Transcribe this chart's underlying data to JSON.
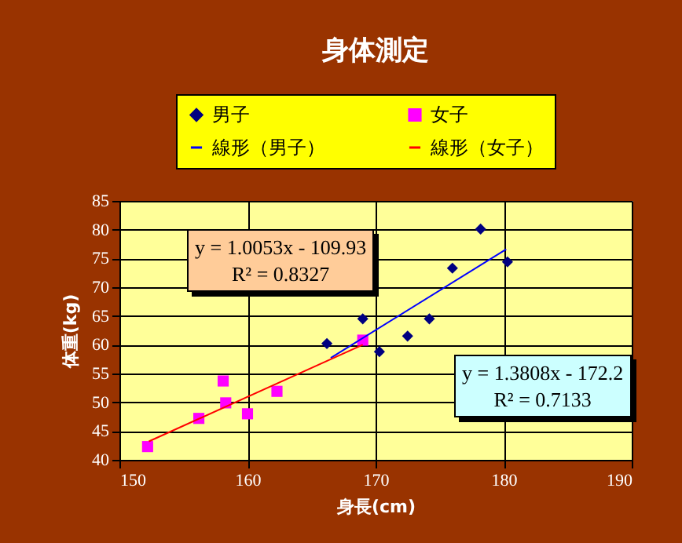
{
  "chart_data": {
    "type": "scatter",
    "title": "身体測定",
    "xlabel": "身長(cm)",
    "ylabel": "体重(kg)",
    "xlim": [
      150,
      190
    ],
    "xticks": [
      150,
      160,
      170,
      180,
      190
    ],
    "ylim": [
      40,
      85
    ],
    "yticks": [
      40,
      45,
      50,
      55,
      60,
      65,
      70,
      75,
      80,
      85
    ],
    "grid": true,
    "legend": "top",
    "annotations": [
      "y = 1.0053x - 109.93\nR² = 0.8327",
      "y = 1.3808x - 172.2\nR² = 0.7133"
    ],
    "series": [
      {
        "name": "男子",
        "type": "scatter",
        "marker": "diamond",
        "color": "#000080",
        "x": [
          166.2,
          169.0,
          170.3,
          172.5,
          174.2,
          176.0,
          178.2,
          180.3
        ],
        "values": [
          60.2,
          64.5,
          58.8,
          61.5,
          64.5,
          73.3,
          80.1,
          74.4
        ]
      },
      {
        "name": "女子",
        "type": "scatter",
        "marker": "square",
        "color": "#ff00ff",
        "x": [
          152.2,
          156.2,
          158.1,
          158.3,
          160.0,
          162.3,
          169.0
        ],
        "values": [
          42.3,
          47.2,
          53.7,
          49.9,
          48.0,
          51.9,
          60.8
        ]
      },
      {
        "name": "線形（男子）",
        "type": "line",
        "color": "#0000ff",
        "x": [
          166.5,
          180.2
        ],
        "values": [
          57.7,
          76.6
        ]
      },
      {
        "name": "線形（女子）",
        "type": "line",
        "color": "#ff0000",
        "x": [
          152.3,
          169.0
        ],
        "values": [
          43.2,
          60.0
        ]
      }
    ]
  }
}
